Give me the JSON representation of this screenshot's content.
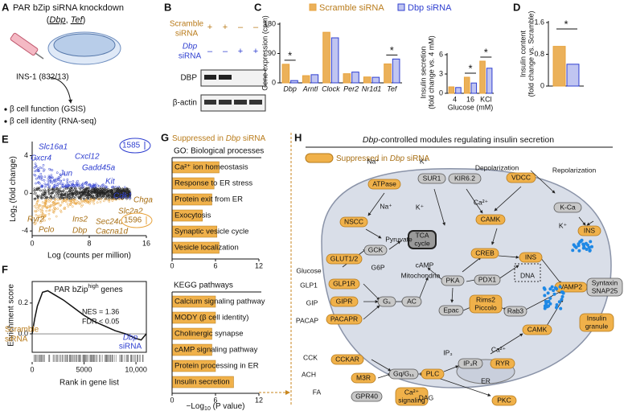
{
  "panels": {
    "A": {
      "letter": "A",
      "title": "PAR bZip siRNA knockdown",
      "gene_open": "(",
      "gene_1": "Dbp",
      "gene_sep": ", ",
      "gene_2": "Tef",
      "gene_close": ")",
      "cell_line": "INS-1 (832/13)",
      "readouts": [
        "β cell function (GSIS)",
        "β cell identity (RNA-seq)"
      ]
    },
    "B": {
      "letter": "B",
      "scramble_label": [
        "Scramble",
        "siRNA"
      ],
      "scramble_signs": [
        "+",
        "+",
        "–",
        "–"
      ],
      "dbp_label": [
        "Dbp",
        "siRNA"
      ],
      "dbp_signs": [
        "–",
        "–",
        "+",
        "+"
      ],
      "blots": [
        "DBP",
        "β-actin"
      ]
    },
    "C": {
      "letter": "C",
      "expression": {
        "type": "bar",
        "ylabel": "Gene expression (cpm)",
        "categories": [
          "Dbp",
          "Arntl",
          "Clock",
          "Per2",
          "Nr1d1",
          "Tef"
        ],
        "series": [
          {
            "name": "Scramble siRNA",
            "color": "#e8a33d",
            "values": [
              57,
              22,
              155,
              28,
              18,
              58
            ]
          },
          {
            "name": "Dbp siRNA",
            "color": "#2f3fd0",
            "values": [
              7,
              25,
              138,
              33,
              17,
              73
            ]
          }
        ],
        "ylim": [
          0,
          180
        ],
        "yticks": [
          0,
          90,
          180
        ],
        "significance": [
          "*",
          "*"
        ]
      },
      "secretion": {
        "type": "bar",
        "ylabel": [
          "Insulin secretion",
          "(fold change vs. 4 mM)"
        ],
        "xlabel": "Glucose (mM)",
        "categories": [
          "4",
          "16",
          "KCl"
        ],
        "series": [
          {
            "color": "#e8a33d",
            "values": [
              1.0,
              2.5,
              5.0
            ]
          },
          {
            "color": "#2f3fd0",
            "values": [
              0.9,
              1.6,
              3.9
            ]
          }
        ],
        "ylim": [
          0,
          6
        ],
        "yticks": [
          0,
          3,
          6
        ],
        "significance": [
          "*",
          "*"
        ]
      }
    },
    "D": {
      "letter": "D",
      "content": {
        "type": "bar",
        "ylabel": [
          "Insulin content",
          "(fold change vs. Scramble)"
        ],
        "series": [
          {
            "color": "#e8a33d",
            "values": [
              1.0
            ]
          },
          {
            "color": "#2f3fd0",
            "values": [
              0.55
            ]
          }
        ],
        "ylim": [
          0,
          1.6
        ],
        "yticks": [
          0,
          0.8,
          1.6
        ],
        "significance": [
          "*"
        ]
      }
    },
    "E": {
      "letter": "E",
      "type": "scatter",
      "xlabel": "Log (counts per million)",
      "ylabel": [
        "Log",
        "2",
        " (fold change)"
      ],
      "xlim": [
        0,
        16
      ],
      "xticks": [
        0,
        8,
        16
      ],
      "ylim": [
        -4.5,
        5.5
      ],
      "yticks": [
        -4,
        0,
        4
      ],
      "up_genes": [
        "Slc16a1",
        "Cxcr4",
        "Cxcl12",
        "Gadd45a",
        "Jun",
        "Kit",
        "Cdk1"
      ],
      "down_genes": [
        "Chga",
        "Slc2a2",
        "Ryr2",
        "Ins2",
        "Sec24d",
        "Pclo",
        "Dbp",
        "Cacna1d"
      ],
      "up_count": 1585,
      "down_count": 1596
    },
    "F": {
      "letter": "F",
      "type": "line",
      "title": [
        "PAR bZip",
        "high",
        " genes"
      ],
      "stats": [
        "NES = 1.36",
        "FDR < 0.05"
      ],
      "ylabel": "Enrichment score",
      "xlabel": "Rank in gene list",
      "left_label": [
        "Scramble",
        "siRNA"
      ],
      "right_label": [
        "Dbp",
        "siRNA"
      ],
      "x": [
        0,
        250,
        500,
        1000,
        1500,
        2000,
        3000,
        4000,
        5000,
        6000,
        7000,
        8000,
        9000,
        10000,
        10500,
        11000
      ],
      "values": [
        0,
        0.1,
        0.18,
        0.27,
        0.28,
        0.26,
        0.22,
        0.17,
        0.12,
        0.08,
        0.05,
        0.02,
        0,
        -0.03,
        -0.04,
        0
      ],
      "xlim": [
        0,
        11000
      ],
      "xticks": [
        0,
        5000,
        {
          "value": 10000,
          "label": "10,000"
        }
      ],
      "ylim": [
        -0.12,
        0.34
      ],
      "yticks": [
        {
          "value": 0,
          "label": "0.0"
        },
        0.2
      ]
    },
    "G": {
      "letter": "G",
      "heading": [
        "Suppressed in ",
        "Dbp",
        " siRNA"
      ],
      "go": {
        "type": "hbar",
        "title": "GO: Biological processes",
        "categories": [
          "Ca²⁺ ion homeostasis",
          "Response to ER stress",
          "Protein exit from ER",
          "Exocytosis",
          "Synaptic vesicle cycle",
          "Vesicle localization"
        ],
        "values": [
          6.5,
          5.8,
          5.5,
          4.2,
          6.2,
          6.5
        ],
        "color": "#f0b14a",
        "xlim": [
          0,
          12
        ],
        "xticks": [
          0,
          6,
          12
        ]
      },
      "kegg": {
        "type": "hbar",
        "title": "KEGG pathways",
        "categories": [
          "Calcium signaling pathway",
          "MODY (β cell identity)",
          "Cholinergic synapse",
          "cAMP signaling pathway",
          "Protein processing in ER",
          "Insulin secretion"
        ],
        "values": [
          6.0,
          6.0,
          5.5,
          5.5,
          6.0,
          8.5
        ],
        "color": "#f0b14a",
        "xlim": [
          0,
          12
        ],
        "xticks": [
          0,
          6,
          12
        ]
      },
      "xlabel": [
        "−Log",
        "10",
        " (P value)"
      ]
    },
    "H": {
      "letter": "H",
      "title": [
        "Dbp",
        "-controlled modules regulating insulin secretion"
      ],
      "legend": [
        "Suppressed in ",
        "Dbp",
        " siRNA"
      ],
      "nodes": [
        [
          "SUR1"
        ],
        [
          "KIR6.2"
        ],
        [
          "VDCC"
        ],
        [
          "ATPase"
        ],
        [
          "NSCC"
        ],
        [
          "K-Ca"
        ],
        [
          "INS"
        ],
        [
          "CAMK"
        ],
        [
          "GCK"
        ],
        [
          "TCA",
          "cycle"
        ],
        [
          "GLUT1/2"
        ],
        [
          "CREB"
        ],
        [
          "INS"
        ],
        [
          "PKA"
        ],
        [
          "PDX1"
        ],
        [
          "GLP1R"
        ],
        [
          "GIPR"
        ],
        [
          "PACAPR"
        ],
        [
          "Gₛ"
        ],
        [
          "AC"
        ],
        [
          "Epac"
        ],
        [
          "Rims2",
          "Piccolo"
        ],
        [
          "Rab3"
        ],
        [
          "VAMP2"
        ],
        [
          "Syntaxin",
          "SNAP25"
        ],
        [
          "Insulin",
          "granule"
        ],
        [
          "CAMK"
        ],
        [
          "CCKAR"
        ],
        [
          "M3R"
        ],
        [
          "GPR40"
        ],
        [
          "Gq/G₁₁"
        ],
        [
          "PLC"
        ],
        [
          "IP₃R"
        ],
        [
          "RYR"
        ],
        [
          "Ca²⁺",
          "signaling"
        ],
        [
          "PKC"
        ]
      ],
      "labels": [
        "Na⁺",
        "K⁺",
        "Depolarization",
        "Repolarization",
        "Ca²⁺",
        "K⁺",
        "Na⁺",
        "K⁺",
        "Pyruvate",
        "G6P",
        "Glucose",
        "Mitochondria",
        "DNA",
        "cAMP",
        "GLP1",
        "GIP",
        "PACAP",
        "CCK",
        "ACH",
        "FA",
        "IP₃",
        "Ca²⁺",
        "ER",
        "DAG"
      ]
    }
  }
}
